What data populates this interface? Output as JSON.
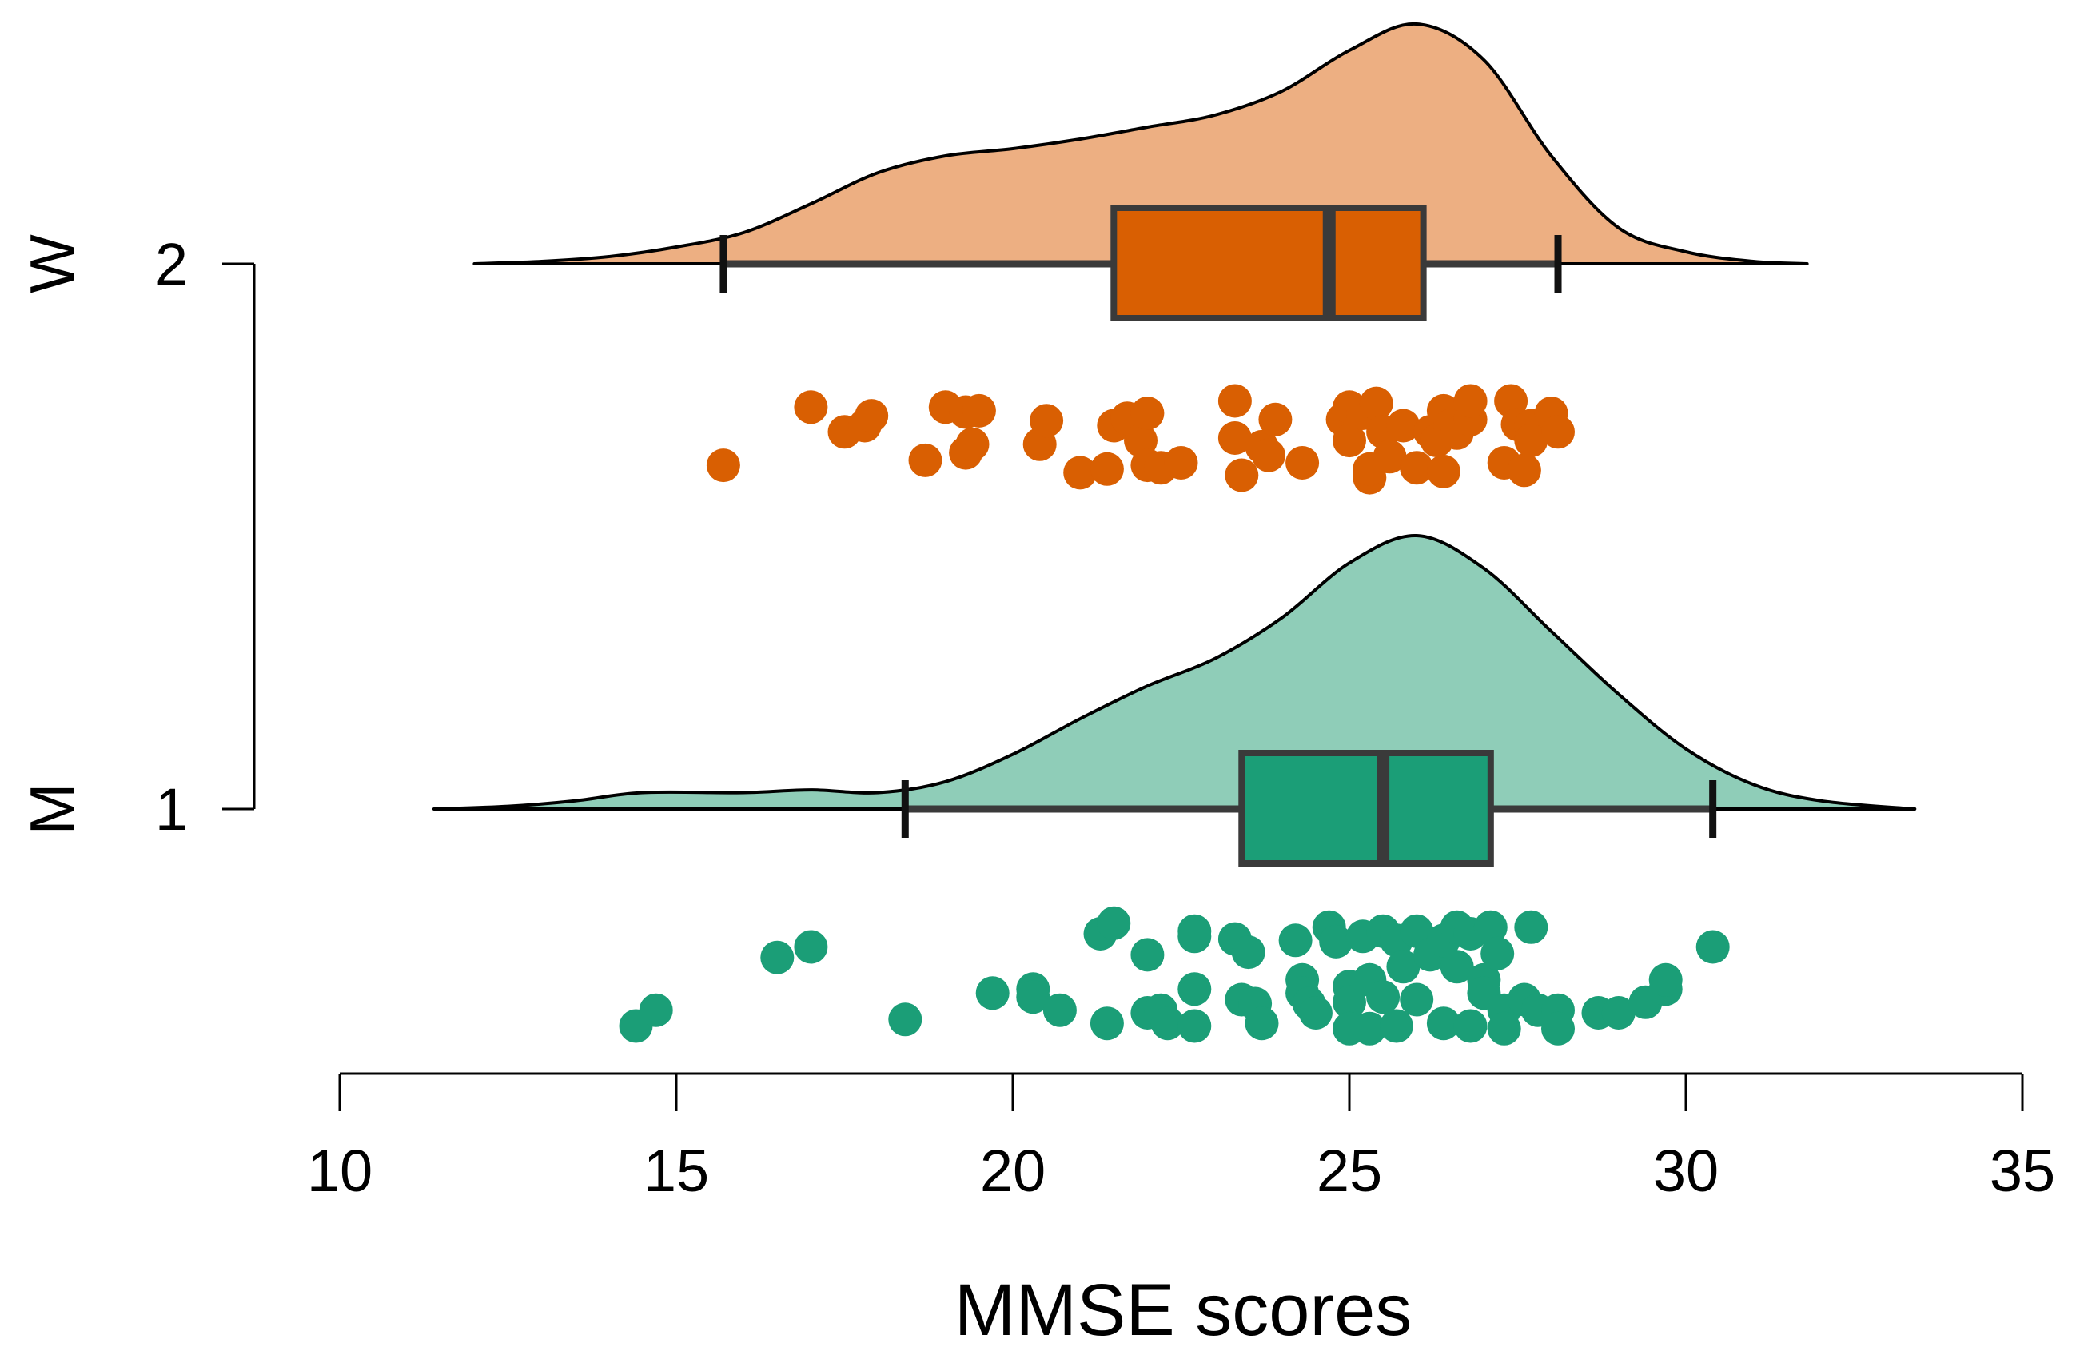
{
  "chart_data": {
    "type": "raincloud",
    "xlabel": "MMSE scores",
    "xlim": [
      10,
      35
    ],
    "xticks": [
      10,
      15,
      20,
      25,
      30,
      35
    ],
    "xtick_labels": [
      "10",
      "15",
      "20",
      "25",
      "30",
      "35"
    ],
    "groups": [
      {
        "id": "W",
        "letter": "W",
        "level": "2",
        "fill_color": "#EDAF82",
        "box_color": "#D95F02",
        "point_color": "#D95F02",
        "whisker_min": 15.7,
        "q1": 21.5,
        "median": 24.7,
        "q3": 26.1,
        "whisker_max": 28.1,
        "density_range": [
          12.0,
          31.8
        ],
        "density": [
          [
            12.0,
            0.0
          ],
          [
            13.0,
            0.01
          ],
          [
            14.0,
            0.03
          ],
          [
            15.0,
            0.07
          ],
          [
            16.0,
            0.13
          ],
          [
            17.0,
            0.25
          ],
          [
            18.0,
            0.38
          ],
          [
            19.0,
            0.45
          ],
          [
            20.0,
            0.48
          ],
          [
            21.0,
            0.52
          ],
          [
            22.0,
            0.57
          ],
          [
            23.0,
            0.62
          ],
          [
            24.0,
            0.72
          ],
          [
            25.0,
            0.89
          ],
          [
            26.0,
            1.0
          ],
          [
            27.0,
            0.85
          ],
          [
            28.0,
            0.45
          ],
          [
            29.0,
            0.15
          ],
          [
            30.0,
            0.05
          ],
          [
            31.0,
            0.01
          ],
          [
            31.8,
            0.0
          ]
        ],
        "points": [
          [
            15.7,
            0.82
          ],
          [
            17.0,
            0.35
          ],
          [
            17.5,
            0.55
          ],
          [
            17.8,
            0.5
          ],
          [
            17.9,
            0.42
          ],
          [
            18.7,
            0.78
          ],
          [
            19.0,
            0.35
          ],
          [
            19.3,
            0.39
          ],
          [
            19.3,
            0.72
          ],
          [
            19.4,
            0.65
          ],
          [
            19.5,
            0.38
          ],
          [
            20.4,
            0.65
          ],
          [
            20.5,
            0.46
          ],
          [
            21.0,
            0.88
          ],
          [
            21.4,
            0.85
          ],
          [
            21.5,
            0.5
          ],
          [
            21.7,
            0.44
          ],
          [
            21.9,
            0.62
          ],
          [
            22.0,
            0.4
          ],
          [
            22.0,
            0.82
          ],
          [
            22.2,
            0.84
          ],
          [
            22.5,
            0.8
          ],
          [
            23.3,
            0.3
          ],
          [
            23.3,
            0.6
          ],
          [
            23.4,
            0.9
          ],
          [
            23.7,
            0.67
          ],
          [
            23.8,
            0.74
          ],
          [
            23.9,
            0.45
          ],
          [
            24.3,
            0.8
          ],
          [
            24.9,
            0.45
          ],
          [
            25.0,
            0.35
          ],
          [
            25.0,
            0.62
          ],
          [
            25.2,
            0.4
          ],
          [
            25.3,
            0.92
          ],
          [
            25.3,
            0.85
          ],
          [
            25.4,
            0.32
          ],
          [
            25.5,
            0.55
          ],
          [
            25.6,
            0.75
          ],
          [
            25.8,
            0.5
          ],
          [
            26.0,
            0.84
          ],
          [
            26.2,
            0.55
          ],
          [
            26.3,
            0.62
          ],
          [
            26.4,
            0.38
          ],
          [
            26.4,
            0.87
          ],
          [
            26.5,
            0.5
          ],
          [
            26.6,
            0.56
          ],
          [
            26.8,
            0.45
          ],
          [
            26.8,
            0.3
          ],
          [
            27.3,
            0.8
          ],
          [
            27.4,
            0.3
          ],
          [
            27.5,
            0.49
          ],
          [
            27.6,
            0.86
          ],
          [
            27.7,
            0.5
          ],
          [
            27.7,
            0.62
          ],
          [
            28.0,
            0.4
          ],
          [
            28.1,
            0.55
          ]
        ]
      },
      {
        "id": "M",
        "letter": "M",
        "level": "1",
        "fill_color": "#8FCDB8",
        "box_color": "#1B9E77",
        "point_color": "#1B9E77",
        "whisker_min": 18.4,
        "q1": 23.4,
        "median": 25.5,
        "q3": 27.1,
        "whisker_max": 30.4,
        "density_range": [
          11.4,
          33.4
        ],
        "density": [
          [
            11.4,
            0.0
          ],
          [
            12.5,
            0.01
          ],
          [
            13.5,
            0.03
          ],
          [
            14.5,
            0.06
          ],
          [
            16.0,
            0.06
          ],
          [
            17.0,
            0.07
          ],
          [
            18.0,
            0.06
          ],
          [
            19.0,
            0.1
          ],
          [
            20.0,
            0.2
          ],
          [
            21.0,
            0.33
          ],
          [
            22.0,
            0.45
          ],
          [
            23.0,
            0.55
          ],
          [
            24.0,
            0.7
          ],
          [
            25.0,
            0.9
          ],
          [
            26.0,
            1.0
          ],
          [
            27.0,
            0.88
          ],
          [
            28.0,
            0.65
          ],
          [
            29.0,
            0.42
          ],
          [
            30.0,
            0.22
          ],
          [
            31.0,
            0.09
          ],
          [
            32.0,
            0.03
          ],
          [
            33.4,
            0.0
          ]
        ],
        "points": [
          [
            14.4,
            0.9
          ],
          [
            14.7,
            0.78
          ],
          [
            16.5,
            0.38
          ],
          [
            17.0,
            0.3
          ],
          [
            18.4,
            0.85
          ],
          [
            19.7,
            0.65
          ],
          [
            20.3,
            0.62
          ],
          [
            20.3,
            0.68
          ],
          [
            20.7,
            0.78
          ],
          [
            21.3,
            0.2
          ],
          [
            21.5,
            0.12
          ],
          [
            21.4,
            0.88
          ],
          [
            22.0,
            0.36
          ],
          [
            22.0,
            0.8
          ],
          [
            22.2,
            0.78
          ],
          [
            22.3,
            0.88
          ],
          [
            22.7,
            0.18
          ],
          [
            22.7,
            0.22
          ],
          [
            22.7,
            0.62
          ],
          [
            22.7,
            0.9
          ],
          [
            23.3,
            0.24
          ],
          [
            23.4,
            0.7
          ],
          [
            23.5,
            0.34
          ],
          [
            23.6,
            0.73
          ],
          [
            23.7,
            0.88
          ],
          [
            24.2,
            0.25
          ],
          [
            24.3,
            0.55
          ],
          [
            24.3,
            0.65
          ],
          [
            24.4,
            0.73
          ],
          [
            24.5,
            0.8
          ],
          [
            24.7,
            0.15
          ],
          [
            24.8,
            0.26
          ],
          [
            25.0,
            0.6
          ],
          [
            25.0,
            0.72
          ],
          [
            25.0,
            0.92
          ],
          [
            25.2,
            0.22
          ],
          [
            25.3,
            0.92
          ],
          [
            25.3,
            0.55
          ],
          [
            25.5,
            0.18
          ],
          [
            25.5,
            0.68
          ],
          [
            25.7,
            0.25
          ],
          [
            25.7,
            0.9
          ],
          [
            25.8,
            0.45
          ],
          [
            26.0,
            0.18
          ],
          [
            26.0,
            0.7
          ],
          [
            26.2,
            0.36
          ],
          [
            26.4,
            0.25
          ],
          [
            26.4,
            0.88
          ],
          [
            26.6,
            0.15
          ],
          [
            26.6,
            0.45
          ],
          [
            26.8,
            0.2
          ],
          [
            26.8,
            0.9
          ],
          [
            27.0,
            0.55
          ],
          [
            27.0,
            0.65
          ],
          [
            27.1,
            0.15
          ],
          [
            27.2,
            0.35
          ],
          [
            27.3,
            0.78
          ],
          [
            27.3,
            0.92
          ],
          [
            27.6,
            0.7
          ],
          [
            27.7,
            0.15
          ],
          [
            27.8,
            0.78
          ],
          [
            28.1,
            0.78
          ],
          [
            28.1,
            0.92
          ],
          [
            28.7,
            0.8
          ],
          [
            29.0,
            0.8
          ],
          [
            29.4,
            0.72
          ],
          [
            29.7,
            0.62
          ],
          [
            29.7,
            0.55
          ],
          [
            30.4,
            0.3
          ]
        ]
      }
    ]
  }
}
